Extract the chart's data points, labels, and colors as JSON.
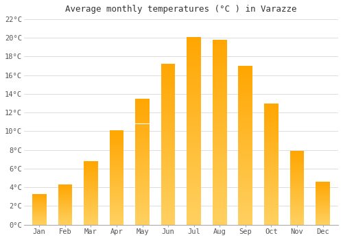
{
  "title": "Average monthly temperatures (°C ) in Varazze",
  "months": [
    "Jan",
    "Feb",
    "Mar",
    "Apr",
    "May",
    "Jun",
    "Jul",
    "Aug",
    "Sep",
    "Oct",
    "Nov",
    "Dec"
  ],
  "temperatures": [
    3.3,
    4.3,
    6.8,
    10.1,
    13.5,
    17.2,
    20.1,
    19.8,
    17.0,
    13.0,
    7.9,
    4.6
  ],
  "bar_color_top": "#FFA500",
  "bar_color_bottom": "#FFD060",
  "ylim": [
    0,
    22
  ],
  "yticks": [
    0,
    2,
    4,
    6,
    8,
    10,
    12,
    14,
    16,
    18,
    20,
    22
  ],
  "ytick_labels": [
    "0°C",
    "2°C",
    "4°C",
    "6°C",
    "8°C",
    "10°C",
    "12°C",
    "14°C",
    "16°C",
    "18°C",
    "20°C",
    "22°C"
  ],
  "background_color": "#ffffff",
  "grid_color": "#dddddd",
  "title_fontsize": 9,
  "tick_fontsize": 7.5,
  "font_family": "monospace",
  "bar_width": 0.55
}
